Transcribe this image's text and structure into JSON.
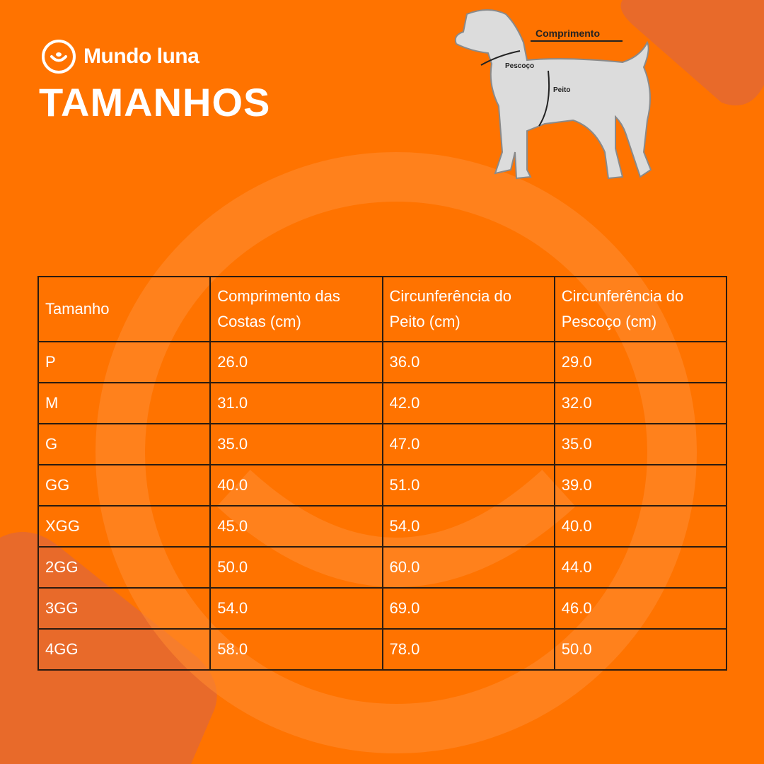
{
  "header": {
    "brand": "Mundo luna",
    "title": "TAMANHOS"
  },
  "diagram": {
    "labels": [
      "Comprimento",
      "Pescoço",
      "Peito"
    ]
  },
  "table": {
    "columns": [
      "Tamanho",
      "Comprimento das Costas (cm)",
      "Circunferência do Peito (cm)",
      "Circunferência do Pescoço (cm)"
    ],
    "rows": [
      [
        "P",
        "26.0",
        "36.0",
        "29.0"
      ],
      [
        "M",
        "31.0",
        "42.0",
        "32.0"
      ],
      [
        "G",
        "35.0",
        "47.0",
        "35.0"
      ],
      [
        "GG",
        "40.0",
        "51.0",
        "39.0"
      ],
      [
        "XGG",
        "45.0",
        "54.0",
        "40.0"
      ],
      [
        "2GG",
        "50.0",
        "60.0",
        "44.0"
      ],
      [
        "3GG",
        "54.0",
        "69.0",
        "46.0"
      ],
      [
        "4GG",
        "58.0",
        "78.0",
        "50.0"
      ]
    ]
  }
}
